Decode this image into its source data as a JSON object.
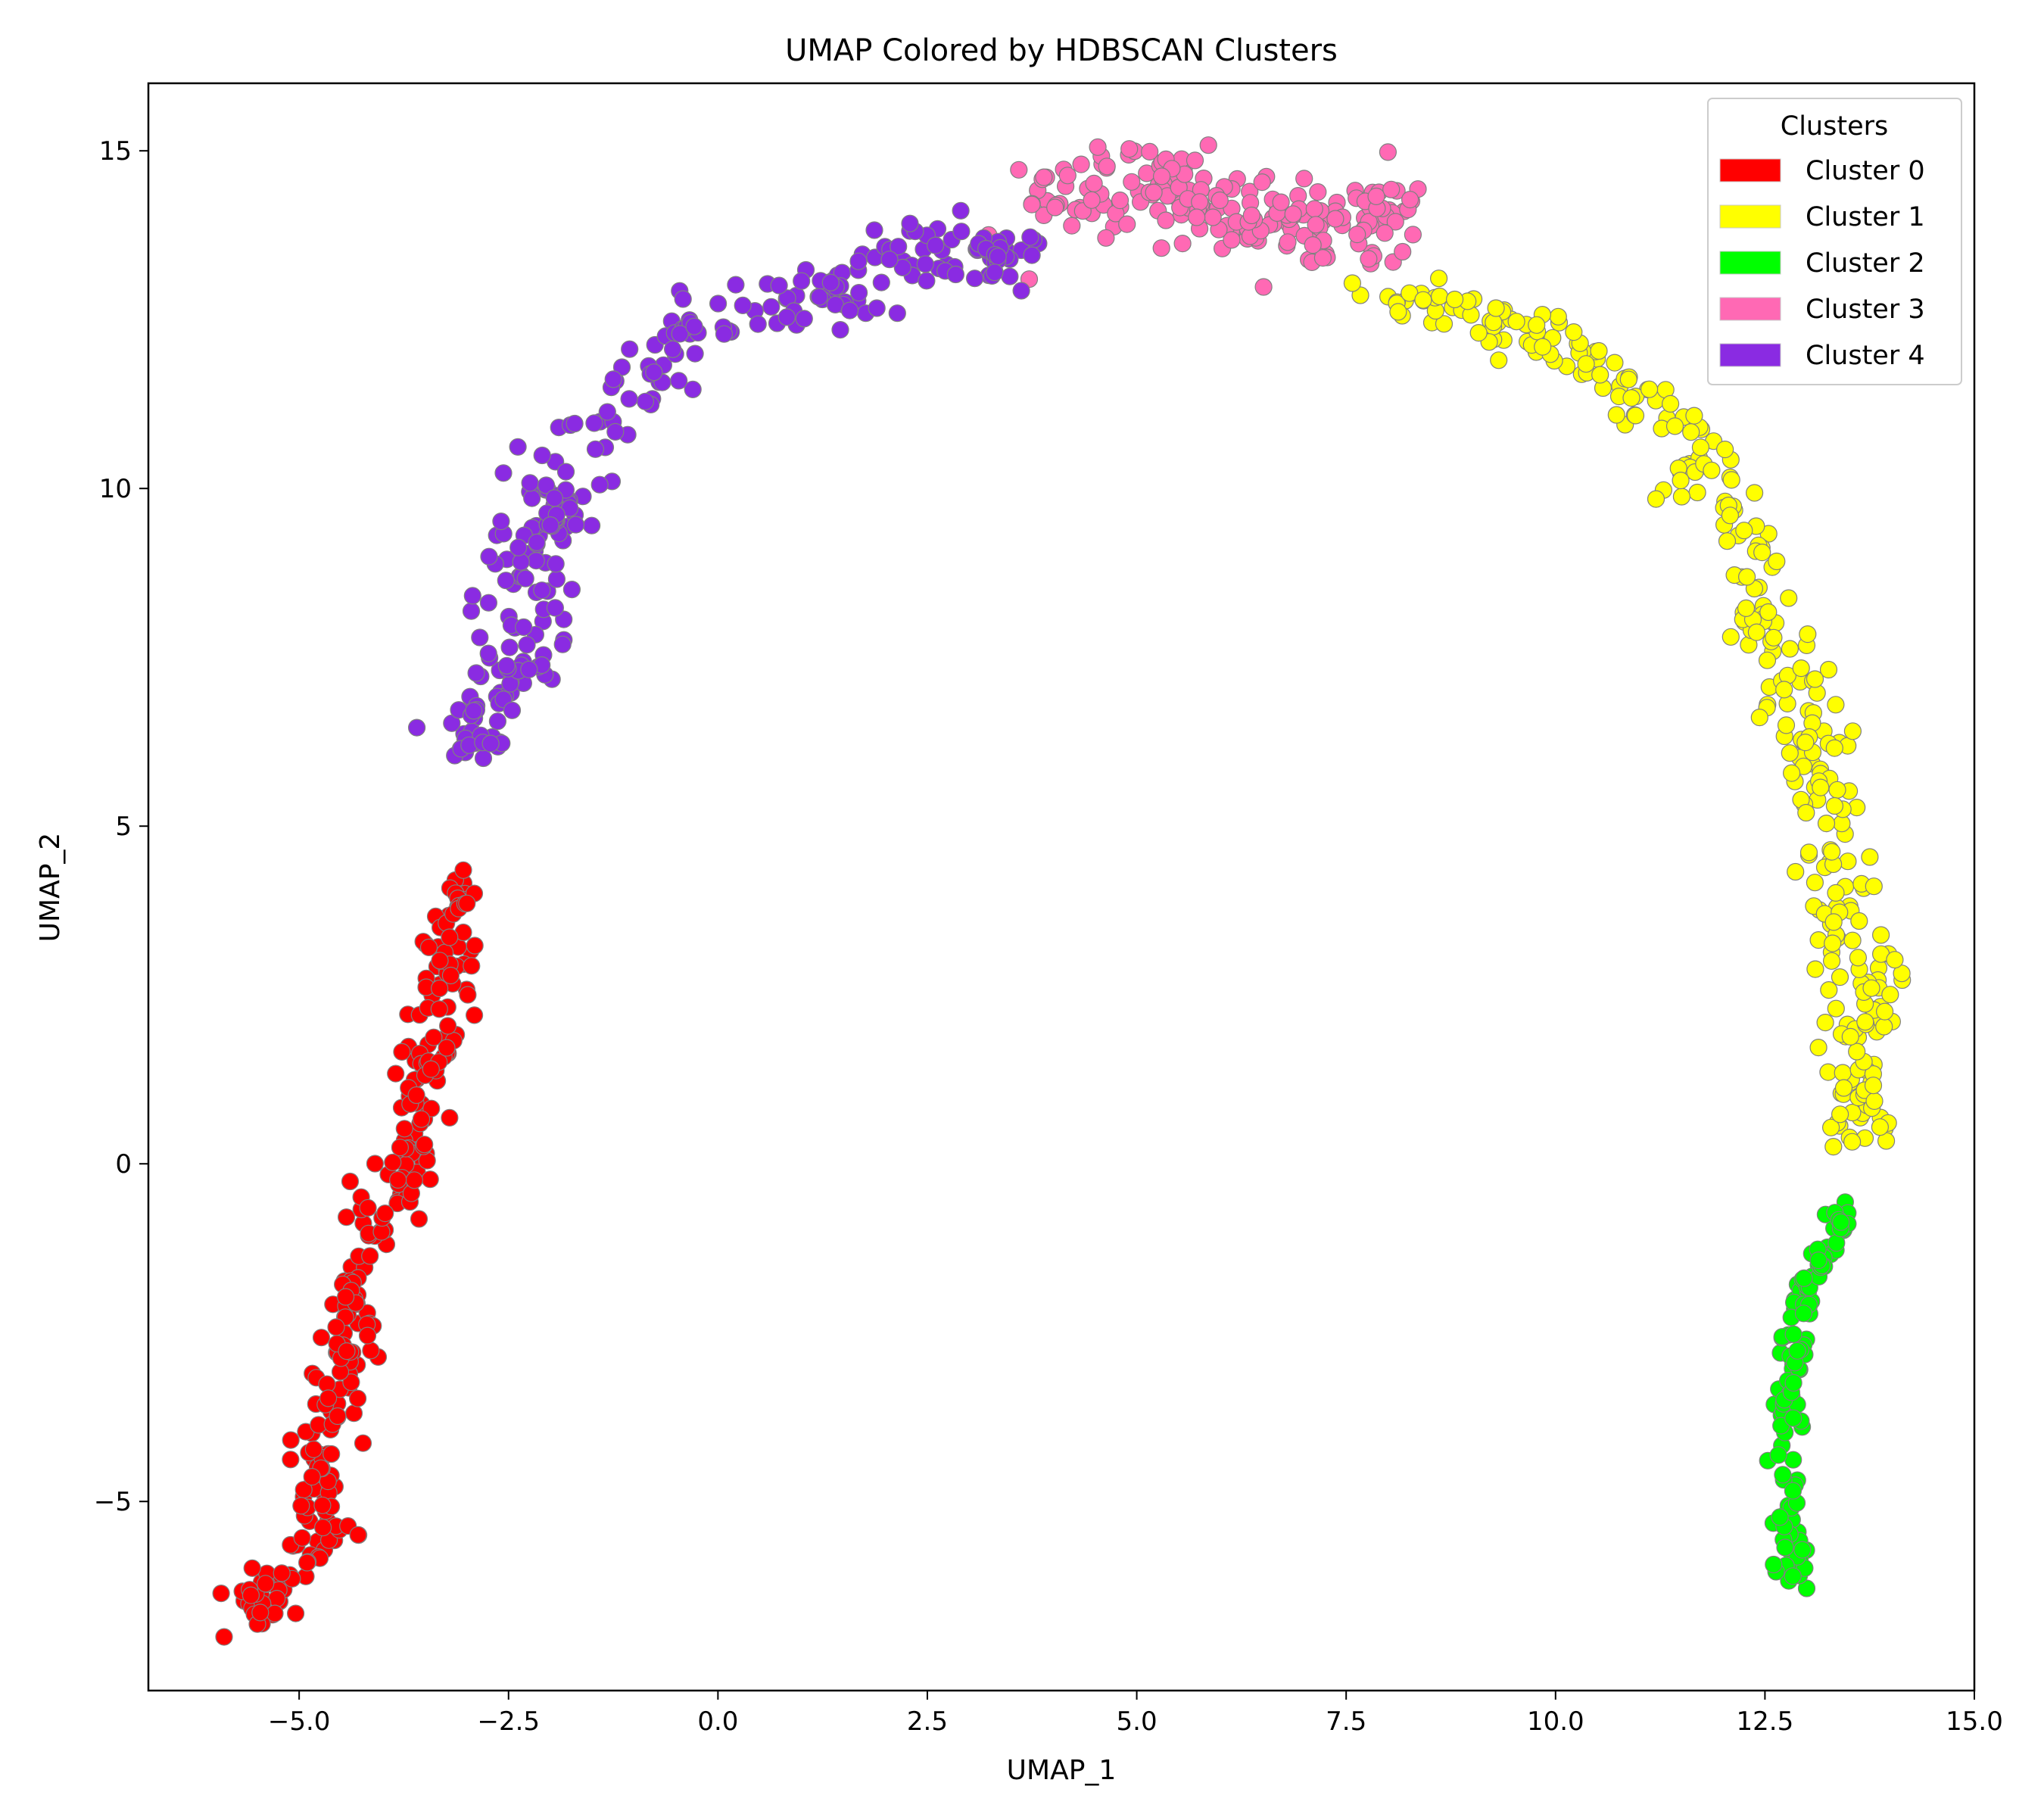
{
  "chart_data": {
    "type": "scatter",
    "title": "UMAP Colored by HDBSCAN Clusters",
    "xlabel": "UMAP_1",
    "ylabel": "UMAP_2",
    "xlim": [
      -6.8,
      15.0
    ],
    "ylim": [
      -7.8,
      16.0
    ],
    "xticks": [
      -5.0,
      -2.5,
      0.0,
      2.5,
      5.0,
      7.5,
      10.0,
      12.5,
      15.0
    ],
    "xtick_labels": [
      "−5.0",
      "−2.5",
      "0.0",
      "2.5",
      "5.0",
      "7.5",
      "10.0",
      "12.5",
      "15.0"
    ],
    "yticks": [
      -5,
      0,
      5,
      10,
      15
    ],
    "ytick_labels": [
      "−5",
      "0",
      "5",
      "10",
      "15"
    ],
    "grid": false,
    "legend": {
      "title": "Clusters",
      "position": "top-right"
    },
    "series": [
      {
        "name": "Cluster 0",
        "color": "#ff0000",
        "path": [
          [
            -5.7,
            -6.6
          ],
          [
            -5.2,
            -6.2
          ],
          [
            -4.7,
            -5.5
          ],
          [
            -4.8,
            -4.6
          ],
          [
            -4.6,
            -3.6
          ],
          [
            -4.4,
            -2.6
          ],
          [
            -4.2,
            -1.6
          ],
          [
            -3.8,
            -0.4
          ],
          [
            -3.6,
            0.8
          ],
          [
            -3.4,
            1.8
          ],
          [
            -3.2,
            3.0
          ],
          [
            -3.0,
            4.2
          ]
        ],
        "count": 300,
        "spread": 0.17
      },
      {
        "name": "Cluster 1",
        "color": "#ffff00",
        "path": [
          [
            7.9,
            12.8
          ],
          [
            9.0,
            12.5
          ],
          [
            10.0,
            12.3
          ],
          [
            10.9,
            11.4
          ],
          [
            11.6,
            10.6
          ],
          [
            12.2,
            9.4
          ],
          [
            12.5,
            8.0
          ],
          [
            12.9,
            6.8
          ],
          [
            13.2,
            5.6
          ],
          [
            13.4,
            4.2
          ],
          [
            13.6,
            3.0
          ],
          [
            13.6,
            1.6
          ],
          [
            13.5,
            0.3
          ]
        ],
        "count": 330,
        "spread": 0.22
      },
      {
        "name": "Cluster 2",
        "color": "#00ff00",
        "path": [
          [
            13.5,
            -0.6
          ],
          [
            13.2,
            -1.3
          ],
          [
            12.9,
            -2.1
          ],
          [
            12.8,
            -3.2
          ],
          [
            12.75,
            -4.3
          ],
          [
            12.8,
            -5.3
          ],
          [
            12.85,
            -6.2
          ]
        ],
        "count": 130,
        "spread": 0.09
      },
      {
        "name": "Cluster 3",
        "color": "#ff69b4",
        "path": [
          [
            3.9,
            14.2
          ],
          [
            4.6,
            14.5
          ],
          [
            5.4,
            14.3
          ],
          [
            6.2,
            14.1
          ],
          [
            6.8,
            13.8
          ],
          [
            7.6,
            14.0
          ],
          [
            8.2,
            14.1
          ]
        ],
        "count": 200,
        "spread": 0.3
      },
      {
        "name": "Cluster 4",
        "color": "#8a2be2",
        "path": [
          [
            -3.0,
            6.0
          ],
          [
            -2.7,
            6.9
          ],
          [
            -2.3,
            7.6
          ],
          [
            -2.4,
            8.8
          ],
          [
            -2.0,
            9.6
          ],
          [
            -1.5,
            10.6
          ],
          [
            -0.9,
            11.6
          ],
          [
            -0.3,
            12.4
          ],
          [
            0.6,
            12.6
          ],
          [
            1.5,
            13.0
          ],
          [
            2.3,
            13.5
          ],
          [
            3.0,
            13.4
          ],
          [
            3.7,
            13.5
          ]
        ],
        "count": 300,
        "spread": 0.24
      }
    ]
  }
}
